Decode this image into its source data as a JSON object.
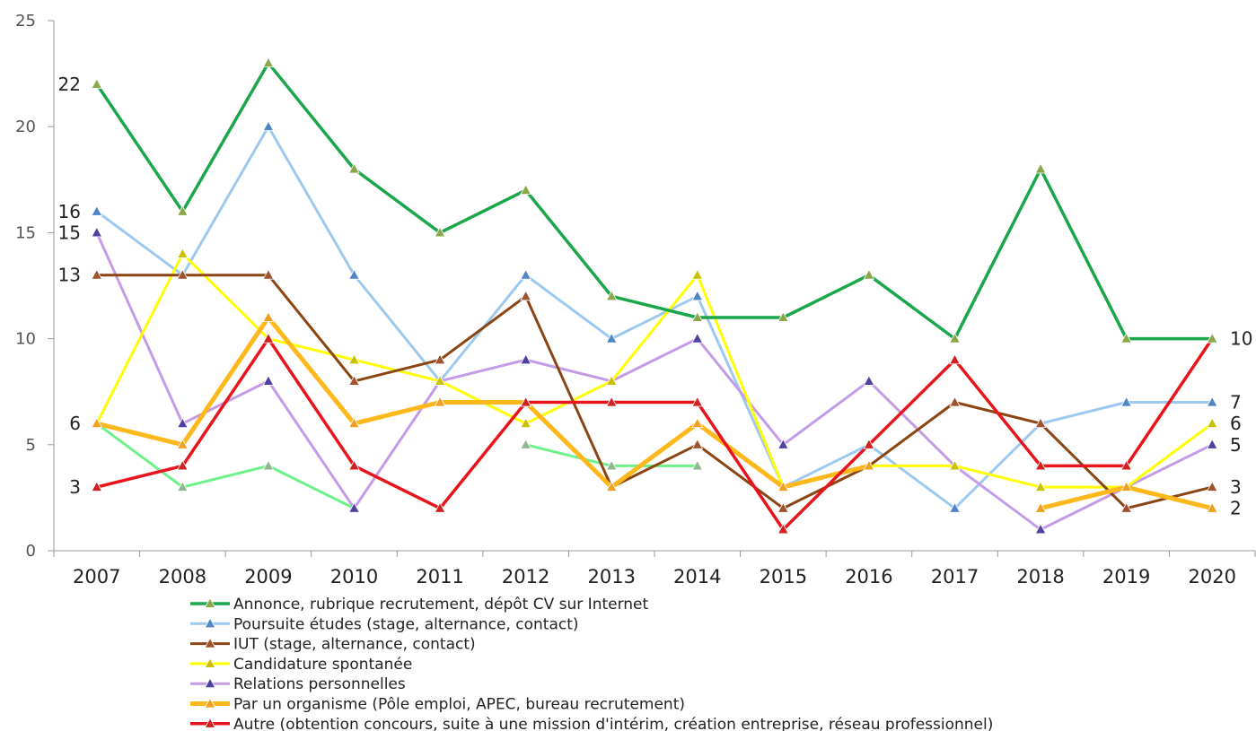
{
  "chart_data": {
    "type": "line",
    "title": "",
    "xlabel": "",
    "ylabel": "",
    "ylim": [
      0,
      25
    ],
    "yticks": [
      "0",
      "5",
      "10",
      "15",
      "20",
      "25"
    ],
    "categories": [
      "2007",
      "2008",
      "2009",
      "2010",
      "2011",
      "2012",
      "2013",
      "2014",
      "2015",
      "2016",
      "2017",
      "2018",
      "2019",
      "2020"
    ],
    "grid": false,
    "legend_position": "bottom",
    "series": [
      {
        "name": "Annonce, rubrique recrutement, dépôt CV sur Internet",
        "color": "#1aa64a",
        "marker_color": "#8aa84a",
        "width": 3.5,
        "values": [
          22,
          16,
          23,
          18,
          15,
          17,
          12,
          11,
          11,
          13,
          10,
          18,
          10,
          10
        ]
      },
      {
        "name": "Poursuite études (stage, alternance, contact)",
        "color": "#9ec9ef",
        "marker_color": "#4f86c6",
        "width": 3,
        "values": [
          16,
          13,
          20,
          13,
          8,
          13,
          10,
          12,
          3,
          5,
          2,
          6,
          7,
          7
        ]
      },
      {
        "name": "IUT (stage, alternance, contact)",
        "color": "#8b4513",
        "marker_color": "#a0522d",
        "width": 3,
        "values": [
          13,
          13,
          13,
          8,
          9,
          12,
          3,
          5,
          2,
          4,
          7,
          6,
          2,
          3
        ]
      },
      {
        "name": "Candidature spontanée",
        "color": "#ffff00",
        "marker_color": "#c9c000",
        "width": 3,
        "values": [
          6,
          14,
          10,
          9,
          8,
          6,
          8,
          13,
          3,
          4,
          4,
          3,
          3,
          6
        ]
      },
      {
        "name": "Relations personnelles",
        "color": "#c39be6",
        "marker_color": "#5040a0",
        "width": 3,
        "values": [
          15,
          6,
          8,
          2,
          8,
          9,
          8,
          10,
          5,
          8,
          4,
          1,
          3,
          5
        ]
      },
      {
        "name": "Par un organisme (Pôle emploi, APEC, bureau recrutement)",
        "color": "#ffb81c",
        "marker_color": "#f0a020",
        "width": 5,
        "values": [
          6,
          5,
          11,
          6,
          7,
          7,
          3,
          6,
          3,
          4,
          null,
          2,
          3,
          2
        ]
      },
      {
        "name": "Autre (obtention concours, suite à une mission d'intérim, création entreprise, réseau professionnel)",
        "color": "#e8141b",
        "marker_color": "#d02020",
        "width": 3.5,
        "values": [
          3,
          4,
          10,
          4,
          2,
          7,
          7,
          7,
          1,
          5,
          9,
          4,
          4,
          10
        ]
      },
      {
        "name": "",
        "color": "#6ef08a",
        "marker_color": "#90b890",
        "width": 3,
        "show_in_legend": false,
        "values": [
          6,
          3,
          4,
          2,
          null,
          5,
          4,
          4,
          null,
          null,
          null,
          null,
          null,
          null
        ]
      }
    ],
    "data_labels_left": [
      "22",
      "16",
      "15",
      "13",
      "6",
      "3"
    ],
    "data_labels_right": [
      "10",
      "7",
      "6",
      "5",
      "3",
      "2"
    ]
  }
}
